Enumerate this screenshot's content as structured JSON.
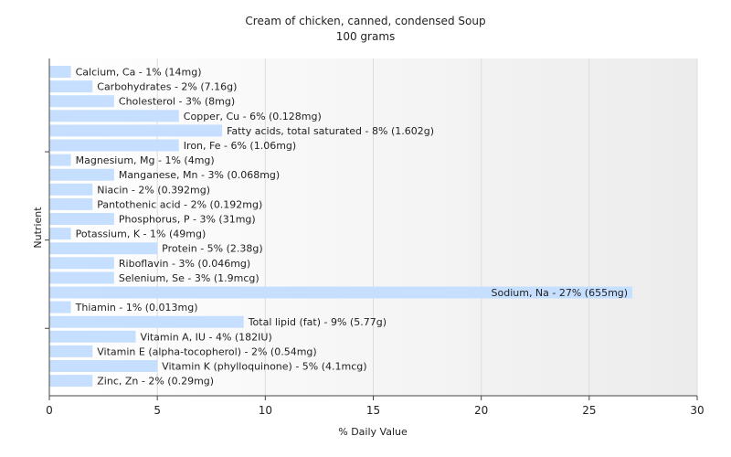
{
  "chart_data": {
    "type": "bar",
    "orientation": "horizontal",
    "title": "Cream of chicken, canned, condensed Soup",
    "subtitle": "100 grams",
    "xlabel": "% Daily Value",
    "ylabel": "Nutrient",
    "xlim": [
      0,
      30
    ],
    "xticks": [
      0,
      5,
      10,
      15,
      20,
      25,
      30
    ],
    "grid": true,
    "bar_color": "#c6dfff",
    "categories": [
      "Calcium, Ca",
      "Carbohydrates",
      "Cholesterol",
      "Copper, Cu",
      "Fatty acids, total saturated",
      "Iron, Fe",
      "Magnesium, Mg",
      "Manganese, Mn",
      "Niacin",
      "Pantothenic acid",
      "Phosphorus, P",
      "Potassium, K",
      "Protein",
      "Riboflavin",
      "Selenium, Se",
      "Sodium, Na",
      "Thiamin",
      "Total lipid (fat)",
      "Vitamin A, IU",
      "Vitamin E (alpha-tocopherol)",
      "Vitamin K (phylloquinone)",
      "Zinc, Zn"
    ],
    "values": [
      1,
      2,
      3,
      6,
      8,
      6,
      1,
      3,
      2,
      2,
      3,
      1,
      5,
      3,
      3,
      27,
      1,
      9,
      4,
      2,
      5,
      2
    ],
    "labels": [
      "Calcium, Ca - 1% (14mg)",
      "Carbohydrates - 2% (7.16g)",
      "Cholesterol - 3% (8mg)",
      "Copper, Cu - 6% (0.128mg)",
      "Fatty acids, total saturated - 8% (1.602g)",
      "Iron, Fe - 6% (1.06mg)",
      "Magnesium, Mg - 1% (4mg)",
      "Manganese, Mn - 3% (0.068mg)",
      "Niacin - 2% (0.392mg)",
      "Pantothenic acid - 2% (0.192mg)",
      "Phosphorus, P - 3% (31mg)",
      "Potassium, K - 1% (49mg)",
      "Protein - 5% (2.38g)",
      "Riboflavin - 3% (0.046mg)",
      "Selenium, Se - 3% (1.9mcg)",
      "Sodium, Na - 27% (655mg)",
      "Thiamin - 1% (0.013mg)",
      "Total lipid (fat) - 9% (5.77g)",
      "Vitamin A, IU - 4% (182IU)",
      "Vitamin E (alpha-tocopherol) - 2% (0.54mg)",
      "Vitamin K (phylloquinone) - 5% (4.1mcg)",
      "Zinc, Zn - 2% (0.29mg)"
    ]
  }
}
